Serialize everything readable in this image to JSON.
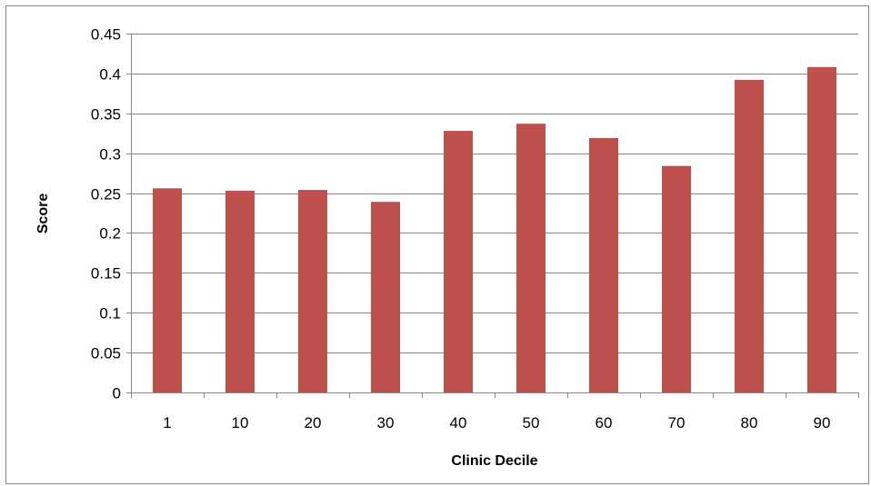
{
  "chart_data": {
    "type": "bar",
    "title": "",
    "xlabel": "Clinic Decile",
    "ylabel": "Score",
    "categories": [
      "1",
      "10",
      "20",
      "30",
      "40",
      "50",
      "60",
      "70",
      "80",
      "90"
    ],
    "series": [
      {
        "values": [
          0.256,
          0.253,
          0.254,
          0.239,
          0.328,
          0.337,
          0.319,
          0.284,
          0.392,
          0.408
        ],
        "color": "#c0504d"
      }
    ],
    "ylim": [
      0,
      0.45
    ],
    "yticks": [
      "0",
      "0.05",
      "0.1",
      "0.15",
      "0.2",
      "0.25",
      "0.3",
      "0.35",
      "0.4",
      "0.45"
    ],
    "grid": true,
    "legend": "none"
  }
}
